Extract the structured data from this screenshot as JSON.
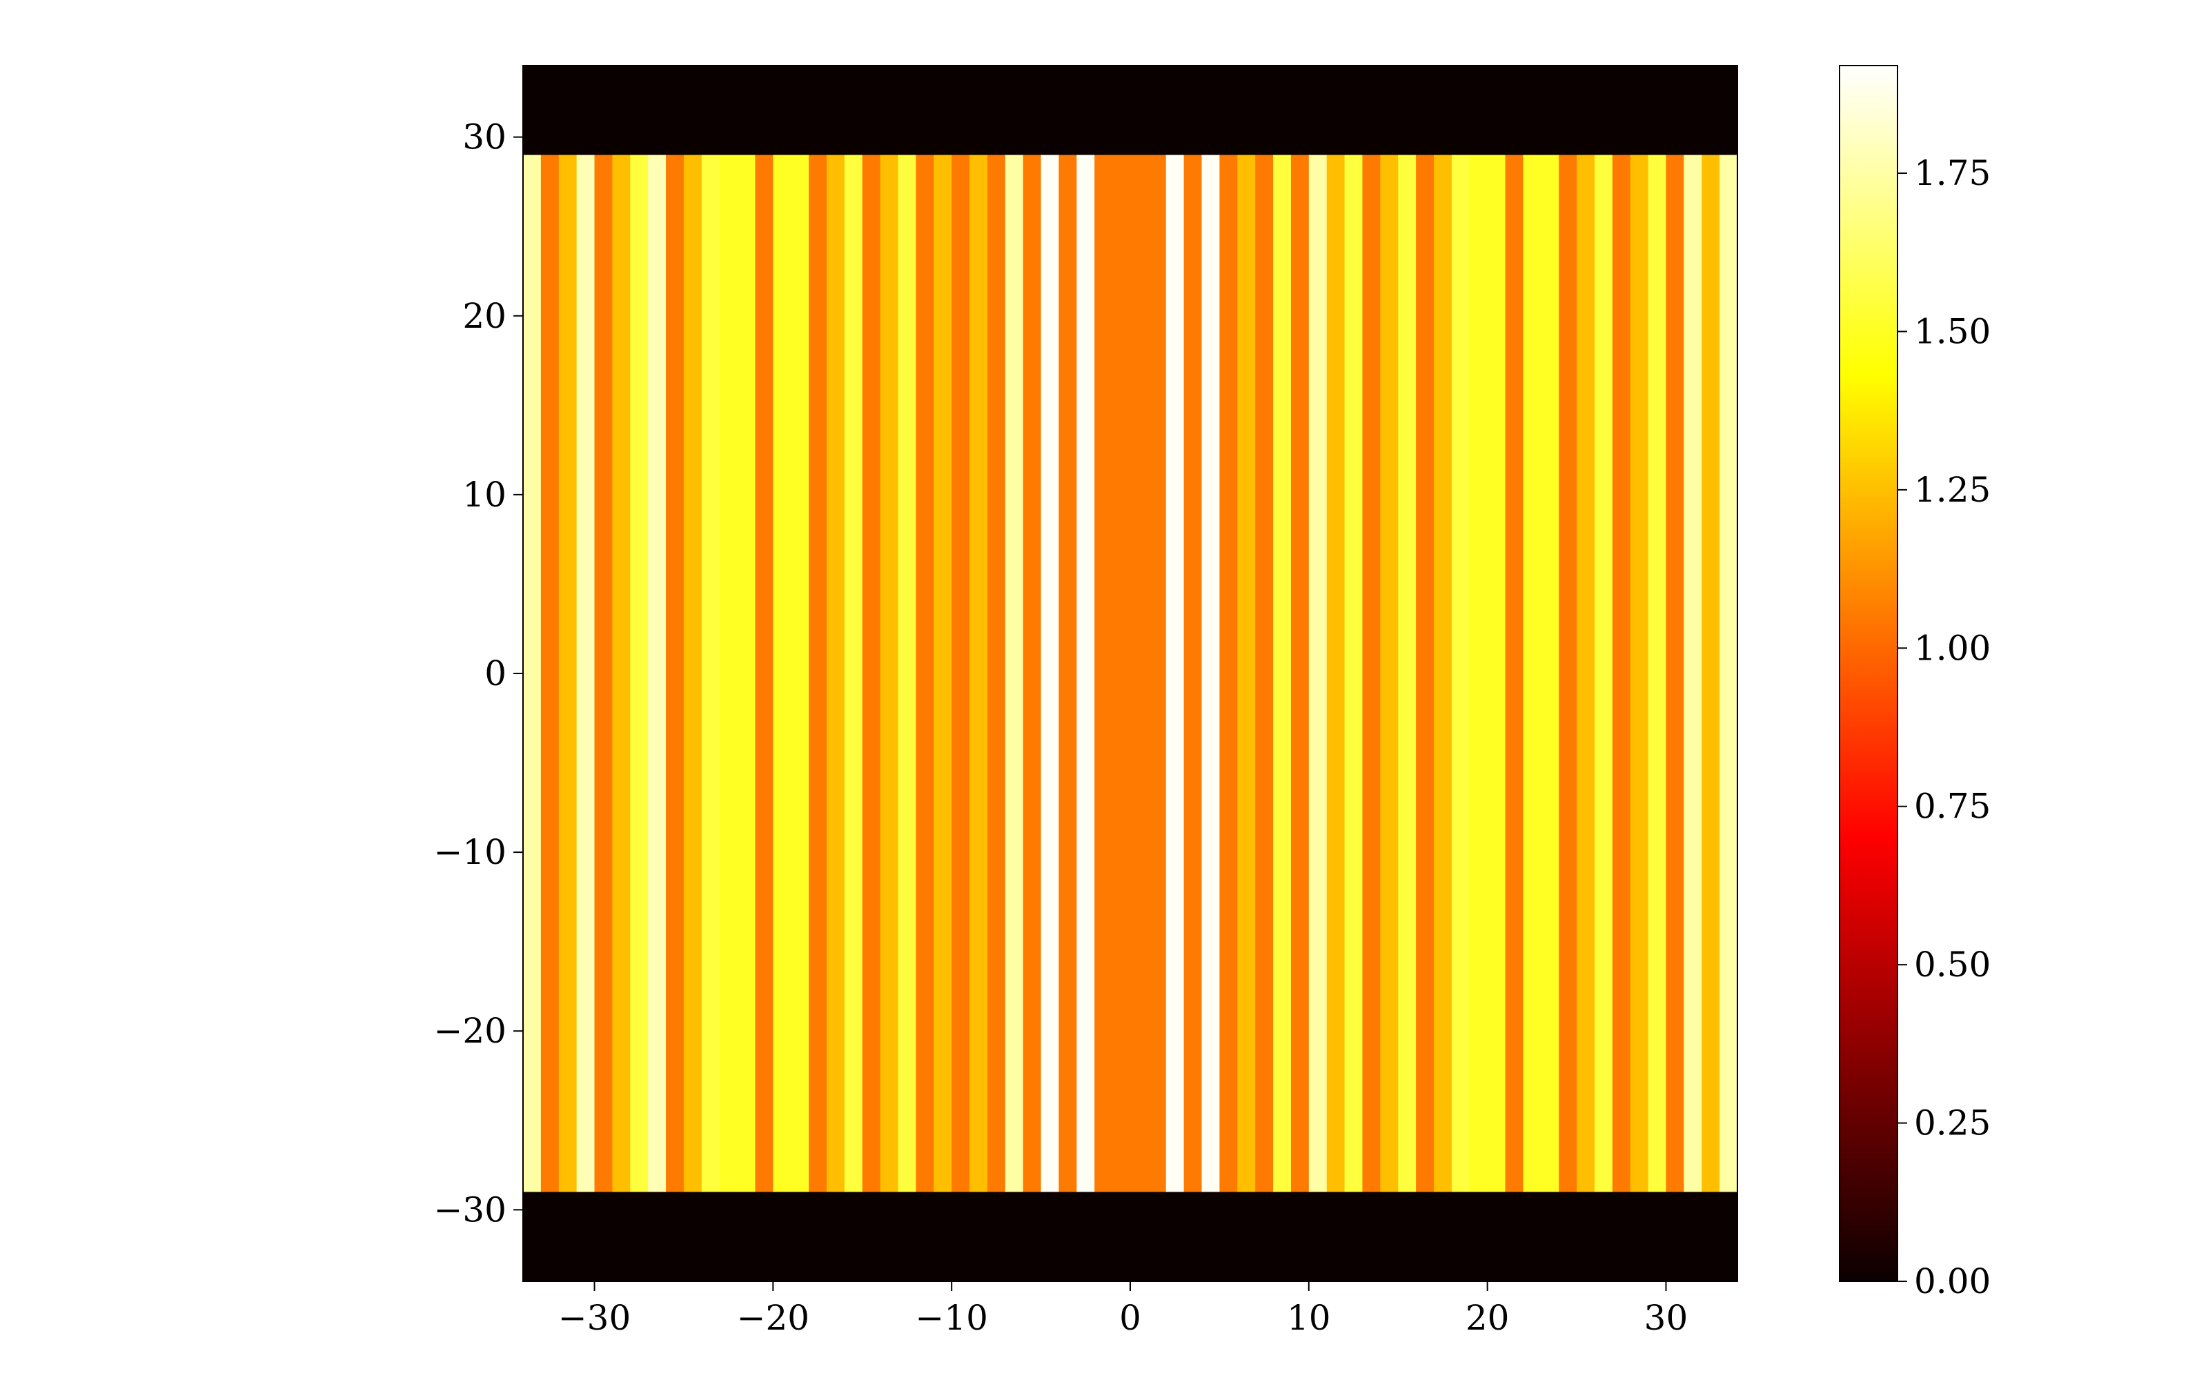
{
  "chart_data": {
    "type": "heatmap",
    "colormap": "hot",
    "xlim": [
      -34,
      34
    ],
    "ylim": [
      -34,
      34
    ],
    "x_ticks": [
      -30,
      -20,
      -10,
      0,
      10,
      20,
      30
    ],
    "x_tick_labels": [
      "−30",
      "−20",
      "−10",
      "0",
      "10",
      "20",
      "30"
    ],
    "y_ticks": [
      30,
      20,
      10,
      0,
      -10,
      -20,
      -30
    ],
    "y_tick_labels": [
      "30",
      "20",
      "10",
      "0",
      "−10",
      "−20",
      "−30"
    ],
    "stripe_y_range": [
      -29,
      29
    ],
    "background_value": 0.0,
    "column_x_edges": [
      -34,
      -33,
      -32,
      -31,
      -30,
      -29,
      -28,
      -27,
      -26,
      -25,
      -24,
      -23,
      -22,
      -21,
      -20,
      -19,
      -18,
      -17,
      -16,
      -15,
      -14,
      -13,
      -12,
      -11,
      -10,
      -9,
      -8,
      -7,
      -6,
      -5,
      -4,
      -3,
      -2,
      -1,
      0,
      1,
      2,
      3,
      4,
      5,
      6,
      7,
      8,
      9,
      10,
      11,
      12,
      13,
      14,
      15,
      16,
      17,
      18,
      19,
      20,
      21,
      22,
      23,
      24,
      25,
      26,
      27,
      28,
      29,
      30,
      31,
      32,
      33,
      34
    ],
    "column_values": [
      1.75,
      1.05,
      1.25,
      1.78,
      1.05,
      1.25,
      1.55,
      1.78,
      1.05,
      1.25,
      1.55,
      1.5,
      1.5,
      1.05,
      1.5,
      1.5,
      1.05,
      1.25,
      1.55,
      1.05,
      1.25,
      1.55,
      1.05,
      1.25,
      1.05,
      1.25,
      1.05,
      1.75,
      1.05,
      1.9,
      1.05,
      1.9,
      1.05,
      1.05,
      1.05,
      1.05,
      1.9,
      1.05,
      1.9,
      1.05,
      1.25,
      1.05,
      1.55,
      1.05,
      1.75,
      1.25,
      1.55,
      1.05,
      1.25,
      1.55,
      1.05,
      1.25,
      1.55,
      1.5,
      1.5,
      1.05,
      1.5,
      1.5,
      1.05,
      1.25,
      1.55,
      1.05,
      1.25,
      1.55,
      1.05,
      1.75,
      1.25,
      1.75
    ],
    "colorbar": {
      "min": 0.0,
      "max": 1.92,
      "ticks": [
        0.0,
        0.25,
        0.5,
        0.75,
        1.0,
        1.25,
        1.5,
        1.75
      ],
      "tick_labels": [
        "0.00",
        "0.25",
        "0.50",
        "0.75",
        "1.00",
        "1.25",
        "1.50",
        "1.75"
      ]
    }
  }
}
